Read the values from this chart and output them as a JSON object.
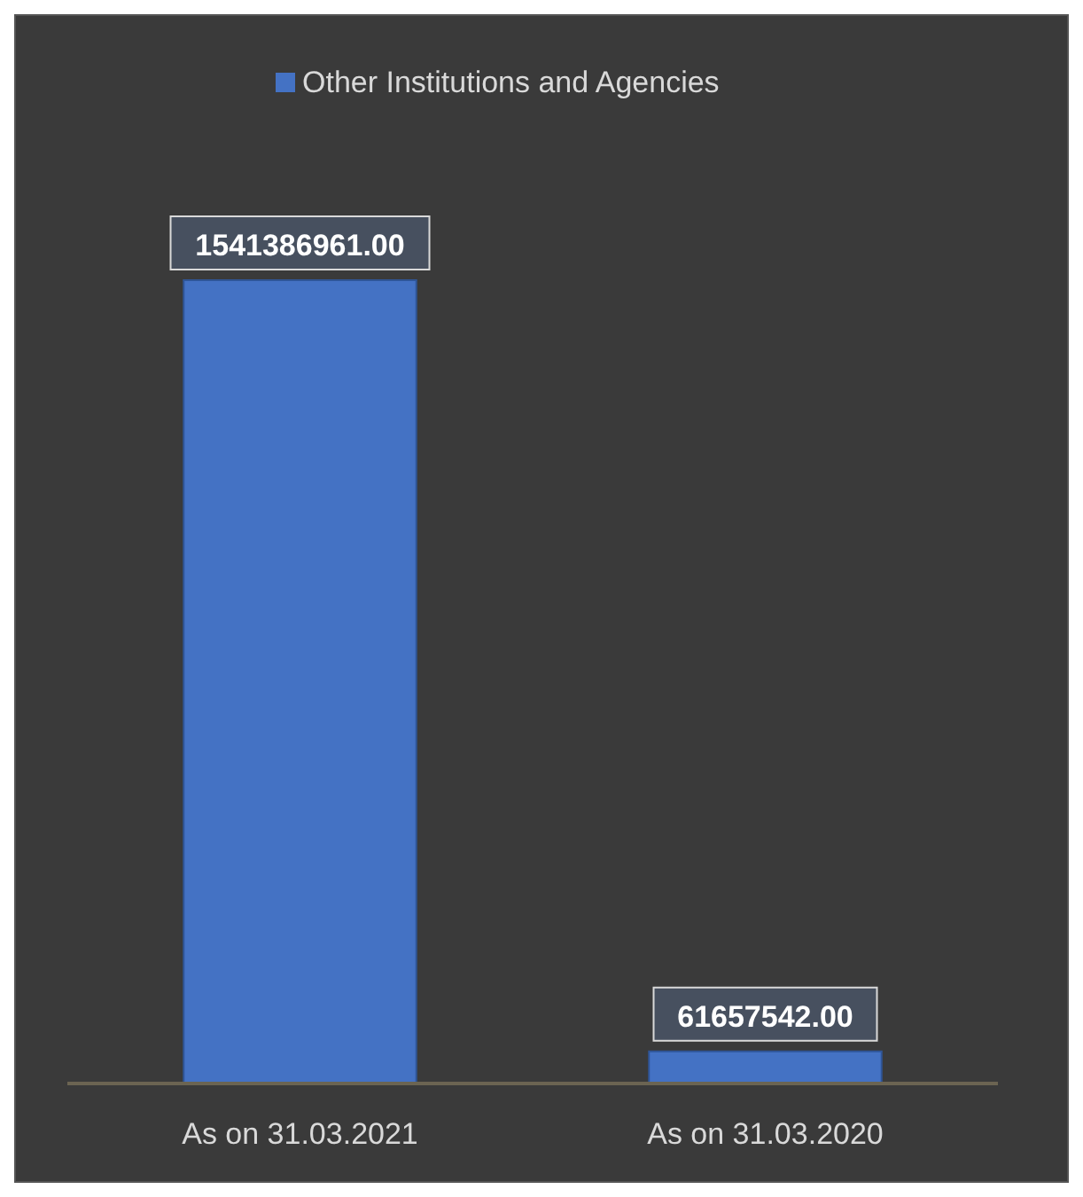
{
  "chart_data": {
    "type": "bar",
    "categories": [
      "As on 31.03.2021",
      "As on 31.03.2020"
    ],
    "series": [
      {
        "name": "Other Institutions and Agencies",
        "color": "#4472c4",
        "values": [
          1541386961,
          61657542
        ],
        "value_labels": [
          "1541386961.00",
          "61657542.00"
        ]
      }
    ],
    "legend": "top"
  }
}
